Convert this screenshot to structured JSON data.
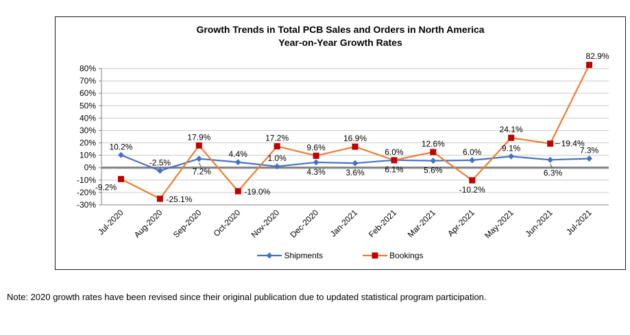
{
  "chart_data": {
    "type": "line",
    "title": "Growth Trends in Total PCB Sales and Orders in North America — Year-on-Year Growth Rates",
    "title_line1": "Growth Trends in Total PCB Sales and Orders in North America",
    "title_line2": "Year-on-Year Growth Rates",
    "categories": [
      "Jul-2020",
      "Aug-2020",
      "Sep-2020",
      "Oct-2020",
      "Nov-2020",
      "Dec-2020",
      "Jan-2021",
      "Feb-2021",
      "Mar-2021",
      "Apr-2021",
      "May-2021",
      "Jun-2021",
      "Jul-2021"
    ],
    "series": [
      {
        "name": "Shipments",
        "color": "#4472C4",
        "marker": "diamond",
        "marker_color": "#4472C4",
        "values": [
          10.2,
          -2.5,
          7.2,
          4.4,
          1.0,
          4.3,
          3.6,
          6.1,
          5.6,
          6.0,
          9.1,
          6.3,
          7.3
        ],
        "label_pos": [
          "above",
          "above",
          "below-leader",
          "above",
          "above",
          "below",
          "below",
          "below",
          "below",
          "above",
          "above",
          "below-leader",
          "above"
        ]
      },
      {
        "name": "Bookings",
        "color": "#ED7D31",
        "marker": "square",
        "marker_color": "#C00000",
        "values": [
          -9.2,
          -25.1,
          17.9,
          -19.0,
          17.2,
          9.6,
          16.9,
          6.0,
          12.6,
          -10.2,
          24.1,
          19.4,
          82.9
        ],
        "label_pos": [
          "below-left",
          "right",
          "above",
          "right",
          "above",
          "above",
          "above",
          "above",
          "above",
          "below",
          "above",
          "right-leader",
          "above-right"
        ]
      }
    ],
    "ylim": [
      -30,
      80
    ],
    "ytick_step": 10,
    "ytick_suffix": "%",
    "grid": true,
    "zero_line": true,
    "legend_position": "bottom",
    "label_format": "0.0%",
    "colors": {
      "grid": "#C9C9C9",
      "zero_line": "#7F7F7F",
      "axis": "#7F7F7F",
      "text": "#000000",
      "leader": "#404040"
    }
  },
  "note": "Note: 2020 growth rates have been revised since their original publication due to updated statistical program participation."
}
